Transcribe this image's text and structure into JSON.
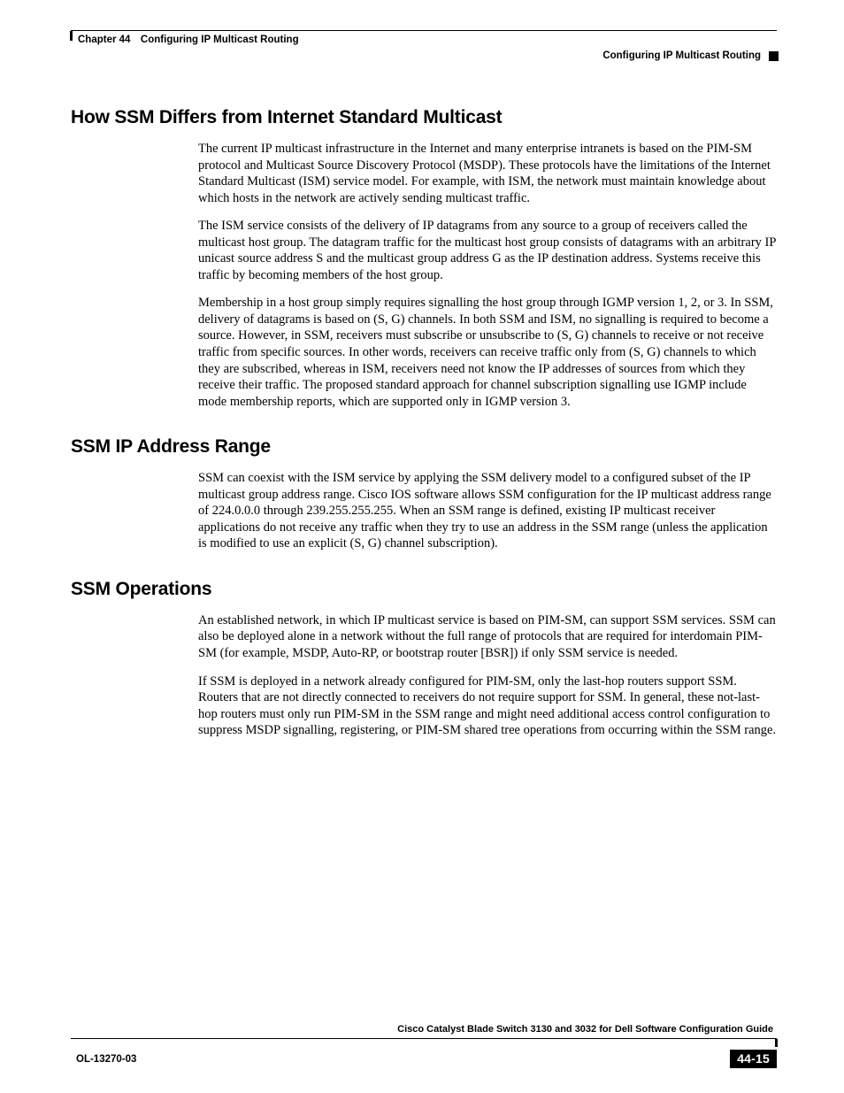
{
  "header": {
    "chapter_line": "Chapter 44 Configuring IP Multicast Routing",
    "section_line": "Configuring IP Multicast Routing"
  },
  "sections": [
    {
      "heading": "How SSM Differs from Internet Standard Multicast",
      "paragraphs": [
        "The current IP multicast infrastructure in the Internet and many enterprise intranets is based on the PIM-SM protocol and Multicast Source Discovery Protocol (MSDP). These protocols have the limitations of the Internet Standard Multicast (ISM) service model. For example, with ISM, the network must maintain knowledge about which hosts in the network are actively sending multicast traffic.",
        "The ISM service consists of the delivery of IP datagrams from any source to a group of receivers called the multicast host group. The datagram traffic for the multicast host group consists of datagrams with an arbitrary IP unicast source address S and the multicast group address G as the IP destination address. Systems receive this traffic by becoming members of the host group.",
        "Membership in a host group simply requires signalling the host group through IGMP version 1, 2, or 3. In SSM, delivery of datagrams is based on (S, G) channels. In both SSM and ISM, no signalling is required to become a source. However, in SSM, receivers must subscribe or unsubscribe to (S, G) channels to receive or not receive traffic from specific sources. In other words, receivers can receive traffic only from (S, G) channels to which they are subscribed, whereas in ISM, receivers need not know the IP addresses of sources from which they receive their traffic. The proposed standard approach for channel subscription signalling use IGMP include mode membership reports, which are supported only in IGMP version 3."
      ]
    },
    {
      "heading": "SSM IP Address Range",
      "paragraphs": [
        "SSM can coexist with the ISM service by applying the SSM delivery model to a configured subset of the IP multicast group address range. Cisco IOS software allows SSM configuration for the IP multicast address range of 224.0.0.0 through 239.255.255.255. When an SSM range is defined, existing IP multicast receiver applications do not receive any traffic when they try to use an address in the SSM range (unless the application is modified to use an explicit (S, G) channel subscription)."
      ]
    },
    {
      "heading": "SSM Operations",
      "paragraphs": [
        "An established network, in which IP multicast service is based on PIM-SM, can support SSM services. SSM can also be deployed alone in a network without the full range of protocols that are required for interdomain PIM-SM (for example, MSDP, Auto-RP, or bootstrap router [BSR]) if only SSM service is needed.",
        "If SSM is deployed in a network already configured for PIM-SM, only the last-hop routers support SSM. Routers that are not directly connected to receivers do not require support for SSM. In general, these not-last-hop routers must only run PIM-SM in the SSM range and might need additional access control configuration to suppress MSDP signalling, registering, or PIM-SM shared tree operations from occurring within the SSM range."
      ]
    }
  ],
  "footer": {
    "book_title": "Cisco Catalyst Blade Switch 3130 and 3032 for Dell Software Configuration Guide",
    "doc_number": "OL-13270-03",
    "page_number": "44-15"
  }
}
